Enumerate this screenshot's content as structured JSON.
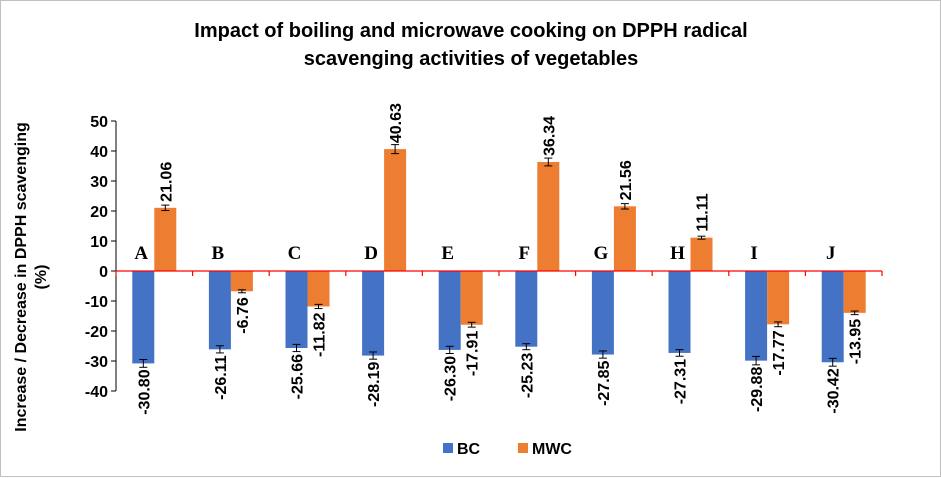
{
  "chart_data": {
    "type": "bar",
    "title_lines": [
      "Impact of boiling and microwave cooking on DPPH radical",
      "scavenging activities of vegetables"
    ],
    "ylabel_lines": [
      "Increase / Decrease in DPPH scavenging",
      "(%)"
    ],
    "xlabel": "",
    "ylim": [
      -40,
      50
    ],
    "yticks": [
      50,
      40,
      30,
      20,
      10,
      0,
      -10,
      -20,
      -30,
      -40
    ],
    "categories": [
      "A",
      "B",
      "C",
      "D",
      "E",
      "F",
      "G",
      "H",
      "I",
      "J"
    ],
    "series": [
      {
        "name": "BC",
        "color": "#4472C4",
        "values": [
          -30.8,
          -26.11,
          -25.66,
          -28.19,
          -26.3,
          -25.23,
          -27.85,
          -27.31,
          -29.88,
          -30.42
        ],
        "labels": [
          "-30.80",
          "-26.11",
          "-25.66",
          "-28.19",
          "-26.30",
          "-25.23",
          "-27.85",
          "-27.31",
          "-29.88",
          "-30.42"
        ],
        "errors": [
          1.3,
          1.2,
          1.2,
          1.2,
          1.2,
          1.0,
          1.2,
          1.1,
          1.4,
          1.3
        ]
      },
      {
        "name": "MWC",
        "color": "#ED7D31",
        "values": [
          21.06,
          -6.76,
          -11.82,
          40.63,
          -17.91,
          36.34,
          21.56,
          11.11,
          -17.77,
          -13.95
        ],
        "labels": [
          "21.06",
          "-6.76",
          "-11.82",
          "40.63",
          "-17.91",
          "36.34",
          "21.56",
          "11.11",
          "-17.77",
          "-13.95"
        ],
        "errors": [
          0.9,
          0.5,
          0.7,
          1.5,
          0.8,
          1.3,
          0.9,
          0.5,
          0.8,
          0.6
        ]
      }
    ],
    "axis_color": "#FF0000",
    "legend_position": "bottom",
    "grid": false
  }
}
